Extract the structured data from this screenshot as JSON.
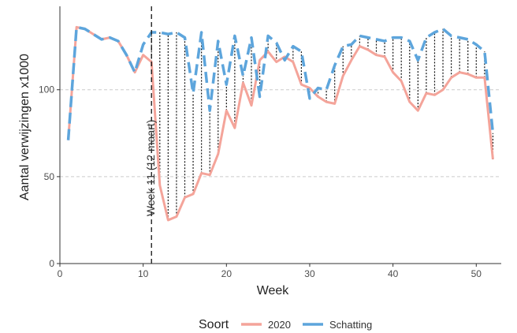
{
  "chart_data": {
    "type": "line",
    "title": "",
    "xlabel": "Week",
    "ylabel": "Aantal verwijzingen x1000",
    "xlim": [
      0,
      53
    ],
    "ylim": [
      0,
      148
    ],
    "x_ticks": [
      0,
      10,
      20,
      30,
      40,
      50
    ],
    "y_ticks": [
      0,
      50,
      100
    ],
    "grid": "horizontal dashed",
    "legend_position": "bottom",
    "legend_title": "Soort",
    "annotation": {
      "x": 11,
      "text": "Week 11 (12 maart)"
    },
    "difference_segments": "vertical dotted lines between series from week 11 to week 52",
    "series": [
      {
        "name": "2020",
        "color": "#f4a49a",
        "x": [
          1,
          2,
          3,
          4,
          5,
          6,
          7,
          8,
          9,
          10,
          11,
          12,
          13,
          14,
          15,
          16,
          17,
          18,
          19,
          20,
          21,
          22,
          23,
          24,
          25,
          26,
          27,
          28,
          29,
          30,
          31,
          32,
          33,
          34,
          35,
          36,
          37,
          38,
          39,
          40,
          41,
          42,
          43,
          44,
          45,
          46,
          47,
          48,
          49,
          50,
          51,
          52
        ],
        "values": [
          71,
          136,
          135,
          132,
          129,
          130,
          128,
          120,
          110,
          120,
          116,
          45,
          25,
          27,
          38,
          40,
          52,
          51,
          63,
          88,
          78,
          104,
          91,
          117,
          122,
          116,
          119,
          116,
          103,
          101,
          96,
          93,
          92,
          108,
          117,
          125,
          123,
          120,
          119,
          110,
          105,
          93,
          88,
          98,
          97,
          100,
          107,
          110,
          109,
          107,
          107,
          60
        ]
      },
      {
        "name": "Schatting",
        "color": "#5da5dc",
        "x": [
          1,
          2,
          3,
          4,
          5,
          6,
          7,
          8,
          9,
          10,
          11,
          12,
          13,
          14,
          15,
          16,
          17,
          18,
          19,
          20,
          21,
          22,
          23,
          24,
          25,
          26,
          27,
          28,
          29,
          30,
          31,
          32,
          33,
          34,
          35,
          36,
          37,
          38,
          39,
          40,
          41,
          42,
          43,
          44,
          45,
          46,
          47,
          48,
          49,
          50,
          51,
          52
        ],
        "values": [
          71,
          136,
          135,
          132,
          129,
          130,
          128,
          120,
          110,
          126,
          133,
          133,
          132,
          133,
          130,
          98,
          133,
          88,
          128,
          103,
          131,
          108,
          130,
          96,
          131,
          127,
          117,
          125,
          122,
          95,
          101,
          100,
          114,
          125,
          126,
          131,
          130,
          129,
          128,
          130,
          130,
          128,
          117,
          130,
          133,
          135,
          131,
          130,
          129,
          126,
          122,
          75
        ]
      }
    ]
  },
  "legend": {
    "title": "Soort",
    "items": [
      {
        "label": "2020",
        "color": "#f4a49a"
      },
      {
        "label": "Schatting",
        "color": "#5da5dc"
      }
    ]
  }
}
